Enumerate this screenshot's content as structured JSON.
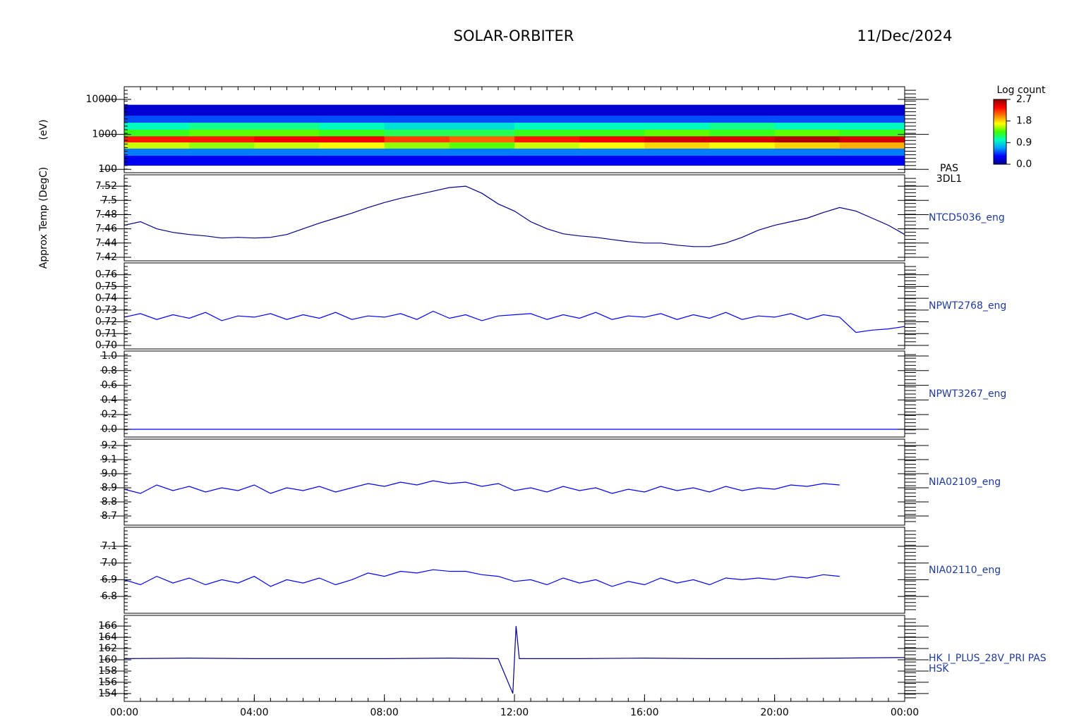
{
  "chart_data": {
    "title": "SOLAR-ORBITER",
    "date": "11/Dec/2024",
    "xlim": [
      0,
      24
    ],
    "xticks": [
      {
        "value": 0,
        "label": "00:00"
      },
      {
        "value": 4,
        "label": "04:00"
      },
      {
        "value": 8,
        "label": "08:00"
      },
      {
        "value": 12,
        "label": "12:00"
      },
      {
        "value": 16,
        "label": "16:00"
      },
      {
        "value": 20,
        "label": "20:00"
      },
      {
        "value": 24,
        "label": "00:00"
      }
    ],
    "x": [
      0,
      0.5,
      1,
      1.5,
      2,
      2.5,
      3,
      3.5,
      4,
      4.5,
      5,
      5.5,
      6,
      6.5,
      7,
      7.5,
      8,
      8.5,
      9,
      9.5,
      10,
      10.5,
      11,
      11.5,
      12,
      12.5,
      13,
      13.5,
      14,
      14.5,
      15,
      15.5,
      16,
      16.5,
      17,
      17.5,
      18,
      18.5,
      19,
      19.5,
      20,
      20.5,
      21,
      21.5,
      22,
      22.5,
      23,
      23.5,
      24
    ],
    "colorbar": {
      "label": "Log count",
      "lim": [
        0,
        2.7
      ],
      "ticks": [
        {
          "value": 0,
          "label": "0.0"
        },
        {
          "value": 0.9,
          "label": "0.9"
        },
        {
          "value": 1.8,
          "label": "1.8"
        },
        {
          "value": 2.7,
          "label": "2.7"
        }
      ],
      "colormap": [
        "#000090",
        "#0000ff",
        "#00a0ff",
        "#00ffc0",
        "#40ff00",
        "#ffff00",
        "#ff8000",
        "#ff0000",
        "#900000"
      ]
    },
    "panels": [
      {
        "type": "spectrogram",
        "ylabel": "(eV)",
        "labels": [
          "PAS",
          "3DL1"
        ],
        "log": true,
        "ylim": [
          80,
          23000
        ],
        "yticks": [
          100,
          1000,
          10000
        ],
        "xbins": [
          0,
          2,
          4,
          6,
          8,
          10,
          12,
          14,
          16,
          18,
          20,
          22,
          24
        ],
        "ybins": [
          130,
          250,
          400,
          600,
          900,
          1400,
          2200,
          3500,
          7000
        ],
        "values": [
          [
            0.3,
            0.3,
            0.3,
            0.3,
            0.3,
            0.3,
            0.3,
            0.3,
            0.3,
            0.3,
            0.3,
            0.3
          ],
          [
            0.6,
            0.6,
            0.6,
            0.6,
            0.6,
            0.6,
            0.6,
            0.6,
            0.6,
            0.6,
            0.6,
            0.6
          ],
          [
            1.6,
            1.5,
            1.6,
            1.7,
            1.5,
            1.4,
            1.6,
            1.7,
            1.8,
            1.7,
            1.8,
            1.9
          ],
          [
            2.3,
            2.3,
            2.4,
            2.4,
            2.2,
            2.1,
            2.3,
            2.4,
            2.5,
            2.5,
            2.6,
            2.5
          ],
          [
            1.3,
            1.4,
            1.4,
            1.3,
            1.2,
            1.2,
            1.3,
            1.3,
            1.4,
            1.3,
            1.4,
            1.3
          ],
          [
            1.0,
            1.1,
            1.1,
            1.0,
            0.9,
            0.9,
            1.0,
            1.0,
            1.0,
            1.1,
            1.0,
            1.0
          ],
          [
            0.5,
            0.5,
            0.5,
            0.5,
            0.5,
            0.5,
            0.5,
            0.5,
            0.5,
            0.5,
            0.5,
            0.5
          ],
          [
            0.2,
            0.2,
            0.2,
            0.2,
            0.2,
            0.2,
            0.2,
            0.2,
            0.2,
            0.2,
            0.2,
            0.2
          ]
        ]
      },
      {
        "type": "line",
        "ylabel": "Approx Temp (DegC)",
        "labels": [
          "NTCD5036_eng"
        ],
        "color": "#00008b",
        "ylim": [
          7.415,
          7.536
        ],
        "yticks": [
          7.42,
          7.44,
          7.46,
          7.48,
          7.5,
          7.52
        ],
        "values": [
          7.465,
          7.47,
          7.46,
          7.455,
          7.452,
          7.45,
          7.447,
          7.448,
          7.447,
          7.448,
          7.452,
          7.46,
          7.468,
          7.475,
          7.482,
          7.49,
          7.497,
          7.503,
          7.508,
          7.513,
          7.518,
          7.52,
          7.51,
          7.495,
          7.485,
          7.47,
          7.46,
          7.453,
          7.45,
          7.448,
          7.445,
          7.442,
          7.44,
          7.44,
          7.437,
          7.435,
          7.435,
          7.44,
          7.448,
          7.458,
          7.465,
          7.47,
          7.475,
          7.483,
          7.49,
          7.485,
          7.475,
          7.465,
          7.452
        ]
      },
      {
        "type": "line",
        "labels": [
          "NPWT2768_eng"
        ],
        "color": "#0000ff",
        "ylim": [
          0.697,
          0.77
        ],
        "yticks": [
          {
            "value": 0.7,
            "label": "0.70"
          },
          0.71,
          0.72,
          0.73,
          0.74,
          0.75,
          0.76
        ],
        "values": [
          0.724,
          0.727,
          0.722,
          0.726,
          0.723,
          0.728,
          0.721,
          0.725,
          0.724,
          0.727,
          0.722,
          0.726,
          0.723,
          0.728,
          0.722,
          0.725,
          0.724,
          0.727,
          0.722,
          0.729,
          0.723,
          0.726,
          0.721,
          0.725,
          0.726,
          0.727,
          0.722,
          0.726,
          0.723,
          0.728,
          0.722,
          0.725,
          0.724,
          0.727,
          0.722,
          0.726,
          0.723,
          0.728,
          0.722,
          0.725,
          0.724,
          0.727,
          0.722,
          0.726,
          0.724,
          0.711,
          0.713,
          0.714,
          0.716
        ]
      },
      {
        "type": "line",
        "labels": [
          "NPWT3267_eng"
        ],
        "color": "#0000ff",
        "ylim": [
          -0.106,
          1.067
        ],
        "yticks": [
          {
            "value": 0,
            "label": "0.0"
          },
          0.2,
          0.4,
          0.6,
          0.8,
          {
            "value": 1,
            "label": "1.0"
          }
        ],
        "values": [
          0,
          0,
          0,
          0,
          0,
          0,
          0,
          0,
          0,
          0,
          0,
          0,
          0,
          0,
          0,
          0,
          0,
          0,
          0,
          0,
          0,
          0,
          0,
          0,
          0,
          0,
          0,
          0,
          0,
          0,
          0,
          0,
          0,
          0,
          0,
          0,
          0,
          0,
          0,
          0,
          0,
          0,
          0,
          0,
          0,
          0,
          0,
          0,
          0
        ]
      },
      {
        "type": "line",
        "labels": [
          "NIA02109_eng"
        ],
        "color": "#0000ff",
        "ylim": [
          8.635,
          9.245
        ],
        "yticks": [
          8.7,
          8.8,
          8.9,
          {
            "value": 9,
            "label": "9.0"
          },
          9.1,
          9.2
        ],
        "values": [
          8.89,
          8.86,
          8.92,
          8.88,
          8.91,
          8.87,
          8.9,
          8.88,
          8.92,
          8.86,
          8.9,
          8.88,
          8.91,
          8.87,
          8.9,
          8.93,
          8.91,
          8.94,
          8.92,
          8.95,
          8.93,
          8.94,
          8.91,
          8.93,
          8.88,
          8.9,
          8.87,
          8.91,
          8.88,
          8.9,
          8.86,
          8.89,
          8.87,
          8.91,
          8.88,
          8.9,
          8.87,
          8.91,
          8.88,
          8.9,
          8.89,
          8.92,
          8.91,
          8.93,
          8.92,
          null,
          null,
          null,
          null
        ]
      },
      {
        "type": "line",
        "labels": [
          "NIA02110_eng"
        ],
        "color": "#0000ff",
        "ylim": [
          6.699,
          7.214
        ],
        "yticks": [
          6.8,
          6.9,
          {
            "value": 7,
            "label": "7.0"
          },
          7.1
        ],
        "values": [
          6.9,
          6.87,
          6.92,
          6.88,
          6.91,
          6.87,
          6.9,
          6.88,
          6.92,
          6.86,
          6.9,
          6.88,
          6.91,
          6.87,
          6.9,
          6.94,
          6.92,
          6.95,
          6.94,
          6.96,
          6.95,
          6.95,
          6.93,
          6.92,
          6.89,
          6.9,
          6.87,
          6.91,
          6.88,
          6.9,
          6.86,
          6.89,
          6.87,
          6.91,
          6.88,
          6.9,
          6.87,
          6.91,
          6.9,
          6.91,
          6.9,
          6.92,
          6.91,
          6.93,
          6.92,
          null,
          null,
          null,
          null
        ]
      },
      {
        "type": "line",
        "labels": [
          "HK_I_PLUS_28V_PRI PAS",
          "HSK"
        ],
        "color": "#00008b",
        "ylim": [
          152.6,
          167.9
        ],
        "yticks": [
          154,
          156,
          158,
          160,
          162,
          164,
          166
        ],
        "x": [
          0,
          2,
          4,
          6,
          8,
          10,
          11.5,
          11.95,
          12.05,
          12.15,
          12.5,
          14,
          16,
          18,
          20,
          22,
          24
        ],
        "values": [
          160.2,
          160.3,
          160.2,
          160.2,
          160.2,
          160.3,
          160.2,
          154,
          166,
          160.2,
          160.2,
          160.2,
          160.3,
          160.2,
          160.2,
          160.3,
          160.4
        ]
      }
    ]
  }
}
